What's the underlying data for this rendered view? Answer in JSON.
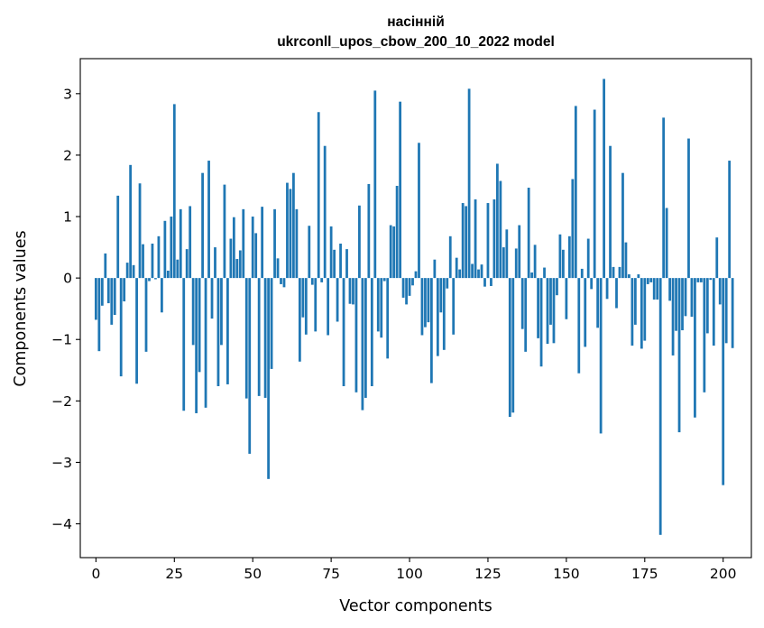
{
  "chart_data": {
    "type": "bar",
    "title_line1": "насінній",
    "title_line2": "ukrconll_upos_cbow_200_10_2022 model",
    "xlabel": "Vector components",
    "ylabel": "Components values",
    "xlim": [
      -5,
      209
    ],
    "ylim": [
      -4.55,
      3.57
    ],
    "xticks": [
      0,
      25,
      50,
      75,
      100,
      125,
      150,
      175,
      200
    ],
    "yticks": [
      -4,
      -3,
      -2,
      -1,
      0,
      1,
      2,
      3
    ],
    "xtick_labels": [
      "0",
      "25",
      "50",
      "75",
      "100",
      "125",
      "150",
      "175",
      "200"
    ],
    "ytick_labels": [
      "−4",
      "−3",
      "−2",
      "−1",
      "0",
      "1",
      "2",
      "3"
    ],
    "bar_color": "#1f77b4",
    "grid": false,
    "values": [
      -0.68,
      -1.19,
      -0.45,
      0.4,
      -0.41,
      -0.76,
      -0.6,
      1.34,
      -1.6,
      -0.38,
      0.25,
      1.84,
      0.21,
      -1.72,
      1.54,
      0.55,
      -1.2,
      -0.05,
      0.56,
      -0.02,
      0.68,
      -0.56,
      0.93,
      0.12,
      1.0,
      2.83,
      0.3,
      1.12,
      -2.16,
      0.47,
      1.17,
      -1.09,
      -2.2,
      -1.53,
      1.71,
      -2.11,
      1.91,
      -0.66,
      0.5,
      -1.76,
      -1.09,
      1.52,
      -1.73,
      0.64,
      0.99,
      0.31,
      0.45,
      1.12,
      -1.96,
      -2.86,
      1.0,
      0.73,
      -1.92,
      1.16,
      -1.95,
      -3.27,
      -1.48,
      1.12,
      0.32,
      -0.1,
      -0.15,
      1.55,
      1.45,
      1.71,
      1.12,
      -1.36,
      -0.64,
      -0.92,
      0.85,
      -0.11,
      -0.87,
      2.7,
      -0.07,
      2.15,
      -0.93,
      0.84,
      0.46,
      -0.71,
      0.56,
      -1.76,
      0.47,
      -0.42,
      -0.43,
      -1.86,
      1.18,
      -2.15,
      -1.95,
      1.53,
      -1.76,
      3.05,
      -0.87,
      -0.97,
      -0.05,
      -1.31,
      0.86,
      0.84,
      1.5,
      2.87,
      -0.32,
      -0.43,
      -0.29,
      -0.12,
      0.11,
      2.2,
      -0.93,
      -0.8,
      -0.72,
      -1.71,
      0.3,
      -1.27,
      -0.56,
      -1.17,
      -0.17,
      0.68,
      -0.92,
      0.33,
      0.14,
      1.22,
      1.17,
      3.08,
      0.23,
      1.28,
      0.14,
      0.22,
      -0.14,
      1.22,
      -0.13,
      1.28,
      1.86,
      1.58,
      0.5,
      0.79,
      -2.26,
      -2.19,
      0.48,
      0.86,
      -0.83,
      -1.2,
      1.47,
      0.09,
      0.54,
      -0.98,
      -1.44,
      0.17,
      -1.07,
      -0.76,
      -1.06,
      -0.28,
      0.71,
      0.46,
      -0.67,
      0.68,
      1.61,
      2.8,
      -1.55,
      0.15,
      -1.12,
      0.64,
      -0.18,
      2.74,
      -0.81,
      -2.53,
      3.24,
      -0.34,
      2.15,
      0.18,
      -0.49,
      0.18,
      1.71,
      0.58,
      0.06,
      -1.1,
      -0.76,
      0.06,
      -1.15,
      -1.02,
      -0.1,
      -0.07,
      -0.35,
      -0.35,
      -4.18,
      2.61,
      1.14,
      -0.37,
      -1.26,
      -0.86,
      -2.51,
      -0.85,
      -0.62,
      2.27,
      -0.63,
      -2.27,
      -0.07,
      -0.07,
      -1.86,
      -0.9,
      -0.03,
      -1.1,
      0.66,
      -0.43,
      -3.37,
      -1.06,
      1.91,
      -1.14
    ]
  }
}
